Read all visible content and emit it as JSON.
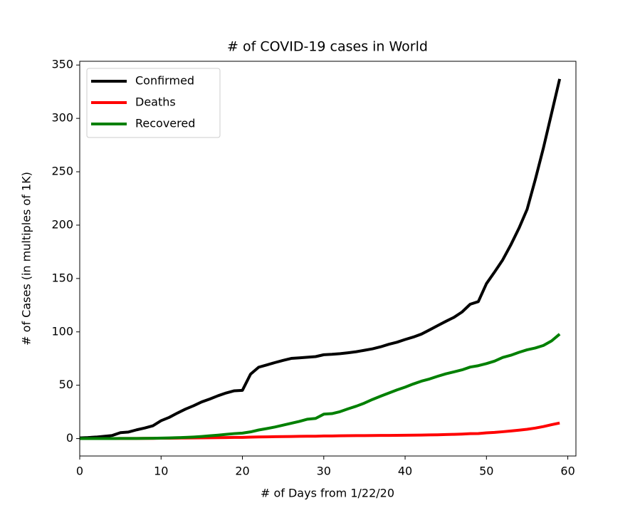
{
  "chart_data": {
    "type": "line",
    "title": "# of COVID-19 cases in World",
    "x_label": "# of Days from 1/22/20",
    "y_label": "# of Cases (in multiples of 1K)",
    "x": [
      0,
      1,
      2,
      3,
      4,
      5,
      6,
      7,
      8,
      9,
      10,
      11,
      12,
      13,
      14,
      15,
      16,
      17,
      18,
      19,
      20,
      21,
      22,
      23,
      24,
      25,
      26,
      27,
      28,
      29,
      30,
      31,
      32,
      33,
      34,
      35,
      36,
      37,
      38,
      39,
      40,
      41,
      42,
      43,
      44,
      45,
      46,
      47,
      48,
      49,
      50,
      51,
      52,
      53,
      54,
      55,
      56,
      57,
      58,
      59
    ],
    "series": [
      {
        "name": "Confirmed",
        "color": "#000000",
        "values": [
          0.654,
          0.941,
          1.434,
          2.118,
          2.927,
          5.578,
          6.166,
          8.234,
          9.927,
          12.038,
          16.787,
          19.881,
          23.892,
          27.635,
          30.794,
          34.391,
          37.12,
          40.15,
          42.762,
          44.802,
          45.221,
          60.368,
          66.885,
          69.03,
          71.224,
          73.258,
          75.136,
          75.639,
          76.197,
          76.819,
          78.572,
          78.958,
          79.561,
          80.406,
          81.388,
          82.746,
          84.112,
          86.011,
          88.369,
          90.306,
          92.84,
          95.12,
          97.886,
          101.801,
          105.847,
          109.821,
          113.59,
          118.62,
          125.875,
          128.352,
          145.205,
          156.101,
          167.454,
          181.574,
          197.102,
          214.821,
          242.57,
          272.208,
          304.507,
          336.953
        ]
      },
      {
        "name": "Deaths",
        "color": "#ff0000",
        "values": [
          0.018,
          0.026,
          0.042,
          0.056,
          0.082,
          0.131,
          0.133,
          0.171,
          0.213,
          0.259,
          0.362,
          0.426,
          0.492,
          0.564,
          0.634,
          0.719,
          0.806,
          0.906,
          1.013,
          1.113,
          1.118,
          1.371,
          1.523,
          1.666,
          1.77,
          1.868,
          2.007,
          2.122,
          2.247,
          2.251,
          2.458,
          2.469,
          2.629,
          2.708,
          2.77,
          2.814,
          2.872,
          2.941,
          2.996,
          3.085,
          3.16,
          3.254,
          3.348,
          3.46,
          3.558,
          3.802,
          3.988,
          4.262,
          4.615,
          4.72,
          5.404,
          5.819,
          6.44,
          7.126,
          7.905,
          8.733,
          9.867,
          11.299,
          13.015,
          14.623
        ]
      },
      {
        "name": "Recovered",
        "color": "#008000",
        "values": [
          0.03,
          0.036,
          0.039,
          0.052,
          0.061,
          0.107,
          0.126,
          0.143,
          0.222,
          0.284,
          0.472,
          0.623,
          0.852,
          1.124,
          1.487,
          2.011,
          2.616,
          3.244,
          3.946,
          4.683,
          5.15,
          6.295,
          8.058,
          9.395,
          10.865,
          12.583,
          14.352,
          16.121,
          18.177,
          18.89,
          22.886,
          23.394,
          25.227,
          27.905,
          30.384,
          33.277,
          36.711,
          39.782,
          42.716,
          45.602,
          48.228,
          51.17,
          53.796,
          55.865,
          58.358,
          60.694,
          62.494,
          64.404,
          67.003,
          68.324,
          70.251,
          72.624,
          76.034,
          78.088,
          80.84,
          83.207,
          84.854,
          87.256,
          91.499,
          97.882
        ]
      }
    ],
    "xlim": [
      0,
      61
    ],
    "xticks": [
      0,
      10,
      20,
      30,
      40,
      50,
      60
    ],
    "ylim": [
      -16.3,
      353.5
    ],
    "yticks": [
      0,
      50,
      100,
      150,
      200,
      250,
      300,
      350
    ],
    "grid": false,
    "legend": "upper left"
  }
}
